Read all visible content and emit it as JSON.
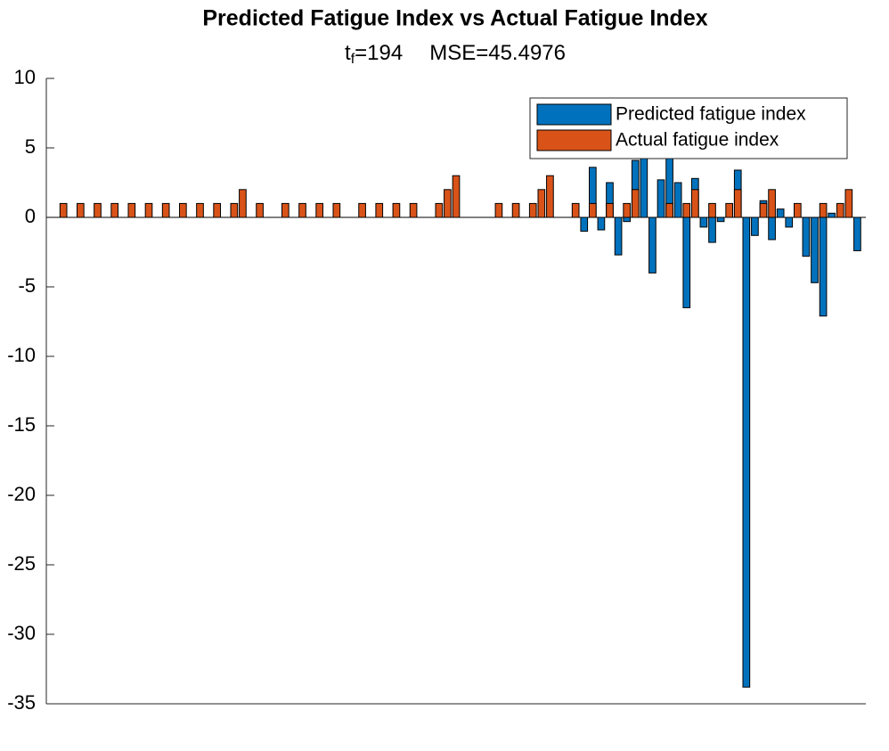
{
  "chart_data": {
    "type": "bar",
    "title": "Predicted Fatigue Index vs Actual Fatigue Index",
    "subtitle_parts": [
      "t",
      "f",
      "=194",
      "MSE=45.4976"
    ],
    "x": [
      1,
      2,
      3,
      4,
      5,
      6,
      7,
      8,
      9,
      10,
      11,
      12,
      13,
      14,
      15,
      16,
      17,
      18,
      19,
      20,
      21,
      22,
      23,
      24,
      25,
      26,
      27,
      28,
      29,
      30,
      31,
      32,
      33,
      34,
      35,
      36,
      37,
      38,
      39,
      40,
      41,
      42,
      43,
      44,
      45,
      46,
      47,
      48,
      49,
      50,
      51,
      52,
      53,
      54,
      55,
      56,
      57,
      58,
      59,
      60,
      61,
      62,
      63,
      64,
      65,
      66,
      67,
      68,
      69,
      70,
      71,
      72,
      73,
      74,
      75,
      76,
      77,
      78,
      79,
      80,
      81,
      82,
      83,
      84,
      85,
      86,
      87,
      88,
      89,
      90,
      91,
      92,
      93,
      94,
      95
    ],
    "series": [
      {
        "name": "Predicted fatigue index",
        "color": "#0072BD",
        "values": [
          0,
          0,
          0,
          0,
          0,
          0,
          0,
          0,
          0,
          0,
          0,
          0,
          0,
          0,
          0,
          0,
          0,
          0,
          0,
          0,
          0,
          0,
          0,
          0,
          0,
          0,
          0,
          0,
          0,
          0,
          0,
          0,
          0,
          0,
          0,
          0,
          0,
          0,
          0,
          0,
          0,
          0,
          0,
          0,
          0,
          0,
          0,
          0,
          0,
          0,
          0,
          0,
          0,
          0,
          0,
          0,
          0,
          0,
          0,
          0,
          0,
          0,
          -1,
          3.6,
          -0.9,
          2.5,
          -2.7,
          -0.3,
          4.1,
          4.4,
          -4,
          2.7,
          4.4,
          2.5,
          -6.5,
          2.8,
          -0.7,
          -1.8,
          -0.3,
          0,
          3.4,
          -33.8,
          -1.3,
          1.2,
          -1.6,
          0.6,
          -0.7,
          0,
          -2.8,
          -4.7,
          -7.1,
          0.3,
          0,
          0,
          -2.4
        ]
      },
      {
        "name": "Actual fatigue index",
        "color": "#D95319",
        "values": [
          0,
          1,
          0,
          1,
          0,
          1,
          0,
          1,
          0,
          1,
          0,
          1,
          0,
          1,
          0,
          1,
          0,
          1,
          0,
          1,
          0,
          1,
          2,
          0,
          1,
          0,
          0,
          1,
          0,
          1,
          0,
          1,
          0,
          1,
          0,
          0,
          1,
          0,
          1,
          0,
          1,
          0,
          1,
          0,
          0,
          1,
          2,
          3,
          0,
          0,
          0,
          0,
          1,
          0,
          1,
          0,
          1,
          2,
          3,
          0,
          0,
          1,
          0,
          1,
          0,
          1,
          0,
          1,
          2,
          0,
          0,
          0,
          1,
          0,
          1,
          2,
          0,
          1,
          0,
          1,
          2,
          0,
          0,
          1,
          2,
          0,
          0,
          1,
          0,
          0,
          1,
          0,
          1,
          2,
          0
        ]
      }
    ],
    "xlim": [
      0,
      96
    ],
    "xticks": [],
    "ylim": [
      -35,
      10
    ],
    "yticks": [
      10,
      5,
      0,
      -5,
      -10,
      -15,
      -20,
      -25,
      -30,
      -35
    ],
    "legend": "northeast"
  }
}
